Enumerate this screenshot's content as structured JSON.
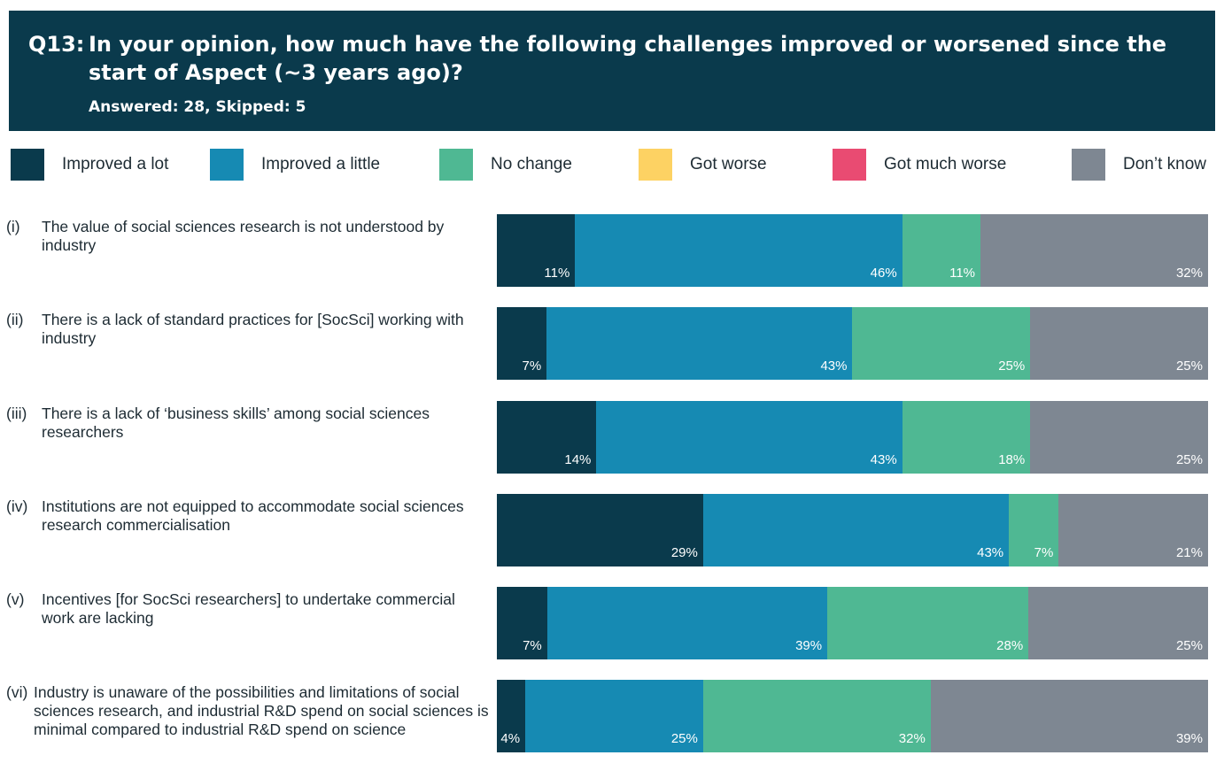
{
  "header": {
    "question_number": "Q13:",
    "question_text": "In your opinion, how much have the following challenges improved or worsened since the start of Aspect (~3 years ago)?",
    "answered_line": "Answered: 28, Skipped: 5"
  },
  "colors": {
    "improved_a_lot": "#0a3a4c",
    "improved_a_little": "#168ab3",
    "no_change": "#4fb893",
    "got_worse": "#fdd263",
    "got_much_worse": "#e94b72",
    "dont_know": "#7e8792"
  },
  "legend": [
    {
      "label": "Improved a lot",
      "color": "#0a3a4c"
    },
    {
      "label": "Improved a little",
      "color": "#168ab3"
    },
    {
      "label": "No change",
      "color": "#4fb893"
    },
    {
      "label": "Got worse",
      "color": "#fdd263"
    },
    {
      "label": "Got much worse",
      "color": "#e94b72"
    },
    {
      "label": "Don’t know",
      "color": "#7e8792"
    }
  ],
  "chart_data": {
    "type": "bar",
    "orientation": "horizontal",
    "stacked": true,
    "categories": [
      "The value of social sciences research is not understood by industry",
      "There is a lack of standard practices for [SocSci] working with industry",
      "There is a lack of ‘business skills’ among social sciences researchers",
      "Institutions are not equipped to accommodate social sciences research commercialisation",
      "Incentives [for SocSci researchers] to undertake commercial work are lacking",
      "Industry is unaware of the possibilities and limitations of social sciences research, and industrial R&D spend on social sciences is minimal compared to industrial R&D spend on science"
    ],
    "category_numbers": [
      "(i)",
      "(ii)",
      "(iii)",
      "(iv)",
      "(v)",
      "(vi)"
    ],
    "series": [
      {
        "name": "Improved a lot",
        "values": [
          11,
          7,
          14,
          29,
          7,
          4
        ],
        "labels": [
          "11%",
          "7%",
          "14%",
          "29%",
          "7%",
          "4%"
        ]
      },
      {
        "name": "Improved a little",
        "values": [
          46,
          43,
          43,
          43,
          39,
          25
        ],
        "labels": [
          "46%",
          "43%",
          "43%",
          "43%",
          "39%",
          "25%"
        ]
      },
      {
        "name": "No change",
        "values": [
          11,
          25,
          18,
          7,
          28,
          32
        ],
        "labels": [
          "11%",
          "25%",
          "18%",
          "7%",
          "28%",
          "32%"
        ]
      },
      {
        "name": "Got worse",
        "values": [
          0,
          0,
          0,
          0,
          0,
          0
        ],
        "labels": [
          "",
          "",
          "",
          "",
          "",
          ""
        ]
      },
      {
        "name": "Got much worse",
        "values": [
          0,
          0,
          0,
          0,
          0,
          0
        ],
        "labels": [
          "",
          "",
          "",
          "",
          "",
          ""
        ]
      },
      {
        "name": "Don’t know",
        "values": [
          32,
          25,
          25,
          21,
          25,
          39
        ],
        "labels": [
          "32%",
          "25%",
          "25%",
          "21%",
          "25%",
          "39%"
        ]
      }
    ],
    "xlim": [
      0,
      100
    ],
    "legend_position": "top"
  }
}
